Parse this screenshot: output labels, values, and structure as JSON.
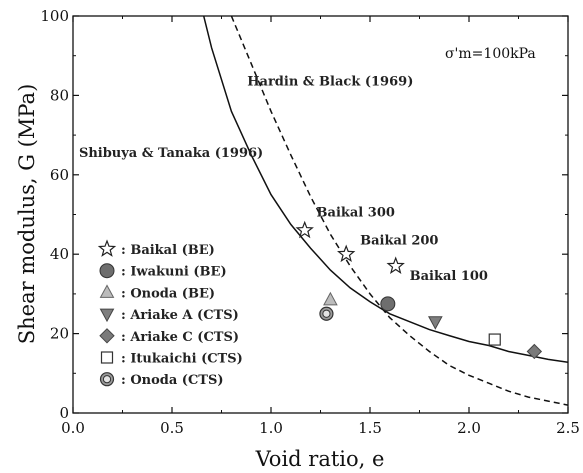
{
  "chart_data": {
    "type": "scatter",
    "title": "",
    "xlabel": "Void ratio, e",
    "ylabel": "Shear modulus, G (MPa)",
    "xlim": [
      0.0,
      2.5
    ],
    "ylim": [
      0,
      100
    ],
    "x_ticks": [
      0.0,
      0.5,
      1.0,
      1.5,
      2.0,
      2.5
    ],
    "x_tick_labels": [
      "0.0",
      "0.5",
      "1.0",
      "1.5",
      "2.0",
      "2.5"
    ],
    "y_ticks": [
      0,
      20,
      40,
      60,
      80,
      100
    ],
    "y_tick_labels": [
      "0",
      "20",
      "40",
      "60",
      "80",
      "100"
    ],
    "grid": false,
    "condition_label": "σ'm=100kPa",
    "curves": [
      {
        "name": "Shibuya & Tanaka (1996)",
        "style": "solid",
        "points": [
          [
            0.66,
            100
          ],
          [
            0.7,
            92
          ],
          [
            0.8,
            76
          ],
          [
            0.9,
            65
          ],
          [
            1.0,
            55
          ],
          [
            1.1,
            47.5
          ],
          [
            1.2,
            41.5
          ],
          [
            1.3,
            36
          ],
          [
            1.4,
            31.5
          ],
          [
            1.5,
            28
          ],
          [
            1.6,
            25
          ],
          [
            1.7,
            23
          ],
          [
            1.8,
            21
          ],
          [
            1.9,
            19.5
          ],
          [
            2.0,
            18
          ],
          [
            2.1,
            17
          ],
          [
            2.2,
            15.5
          ],
          [
            2.3,
            14.5
          ],
          [
            2.4,
            13.5
          ],
          [
            2.5,
            12.8
          ]
        ]
      },
      {
        "name": "Hardin & Black (1969)",
        "style": "dashed",
        "points": [
          [
            0.8,
            100
          ],
          [
            0.9,
            88
          ],
          [
            1.0,
            76
          ],
          [
            1.1,
            65
          ],
          [
            1.2,
            54.5
          ],
          [
            1.3,
            45
          ],
          [
            1.4,
            37
          ],
          [
            1.5,
            30
          ],
          [
            1.6,
            24
          ],
          [
            1.7,
            19.5
          ],
          [
            1.8,
            15.5
          ],
          [
            1.9,
            12
          ],
          [
            2.0,
            9.5
          ],
          [
            2.1,
            7.5
          ],
          [
            2.2,
            5.5
          ],
          [
            2.3,
            4
          ],
          [
            2.4,
            3
          ],
          [
            2.5,
            2
          ]
        ]
      }
    ],
    "series": [
      {
        "name": ": Baikal (BE)",
        "marker": "star",
        "points": [
          [
            1.17,
            46
          ],
          [
            1.38,
            40
          ],
          [
            1.63,
            37
          ]
        ]
      },
      {
        "name": ": Iwakuni (BE)",
        "marker": "circle-dark",
        "points": [
          [
            1.59,
            27.5
          ]
        ]
      },
      {
        "name": ": Onoda (BE)",
        "marker": "triangle-up",
        "points": [
          [
            1.3,
            28.5
          ]
        ]
      },
      {
        "name": ": Ariake A (CTS)",
        "marker": "triangle-down",
        "points": [
          [
            1.83,
            23
          ]
        ]
      },
      {
        "name": ": Ariake C (CTS)",
        "marker": "diamond",
        "points": [
          [
            2.33,
            15.5
          ]
        ]
      },
      {
        "name": ": Itukaichi (CTS)",
        "marker": "square-open",
        "points": [
          [
            2.13,
            18.5
          ]
        ]
      },
      {
        "name": ": Onoda (CTS)",
        "marker": "circle-double",
        "points": [
          [
            1.28,
            25
          ]
        ]
      }
    ],
    "annotations": [
      {
        "text": "Hardin & Black (1969)",
        "x": 0.88,
        "y": 82.5
      },
      {
        "text": "Shibuya & Tanaka (1996)",
        "x": 0.03,
        "y": 64.5
      },
      {
        "text": "Baikal 300",
        "x": 1.23,
        "y": 49.5
      },
      {
        "text": "Baikal 200",
        "x": 1.45,
        "y": 42.5
      },
      {
        "text": "Baikal 100",
        "x": 1.7,
        "y": 33.5
      }
    ],
    "legend_position": "lower-left"
  },
  "colors": {
    "circle_dark": "#6e6e6e",
    "triangle_up": "#bcbcbc",
    "triangle_down": "#7e7e7e",
    "diamond": "#7a7a7a",
    "ink": "#111111"
  }
}
